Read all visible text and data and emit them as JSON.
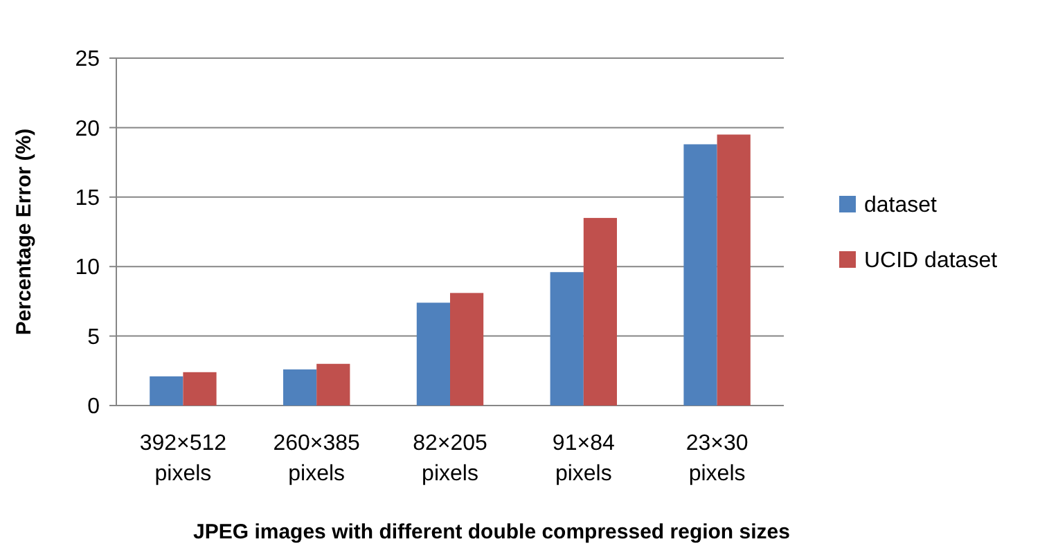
{
  "chart_data": {
    "type": "bar",
    "xlabel": "JPEG images with different double compressed region sizes",
    "ylabel": "Percentage Error (%)",
    "categories": [
      "392×512 pixels",
      "260×385 pixels",
      "82×205 pixels",
      "91×84 pixels",
      "23×30 pixels"
    ],
    "series": [
      {
        "name": "dataset",
        "color": "#4f81bd",
        "values": [
          2.1,
          2.6,
          7.4,
          9.6,
          18.8
        ]
      },
      {
        "name": "UCID dataset",
        "color": "#c0504d",
        "values": [
          2.4,
          3.0,
          8.1,
          13.5,
          19.5
        ]
      }
    ],
    "ylim": [
      0,
      25
    ],
    "yticks": [
      0,
      5,
      10,
      15,
      20,
      25
    ],
    "grid": "y",
    "legend": "right"
  }
}
